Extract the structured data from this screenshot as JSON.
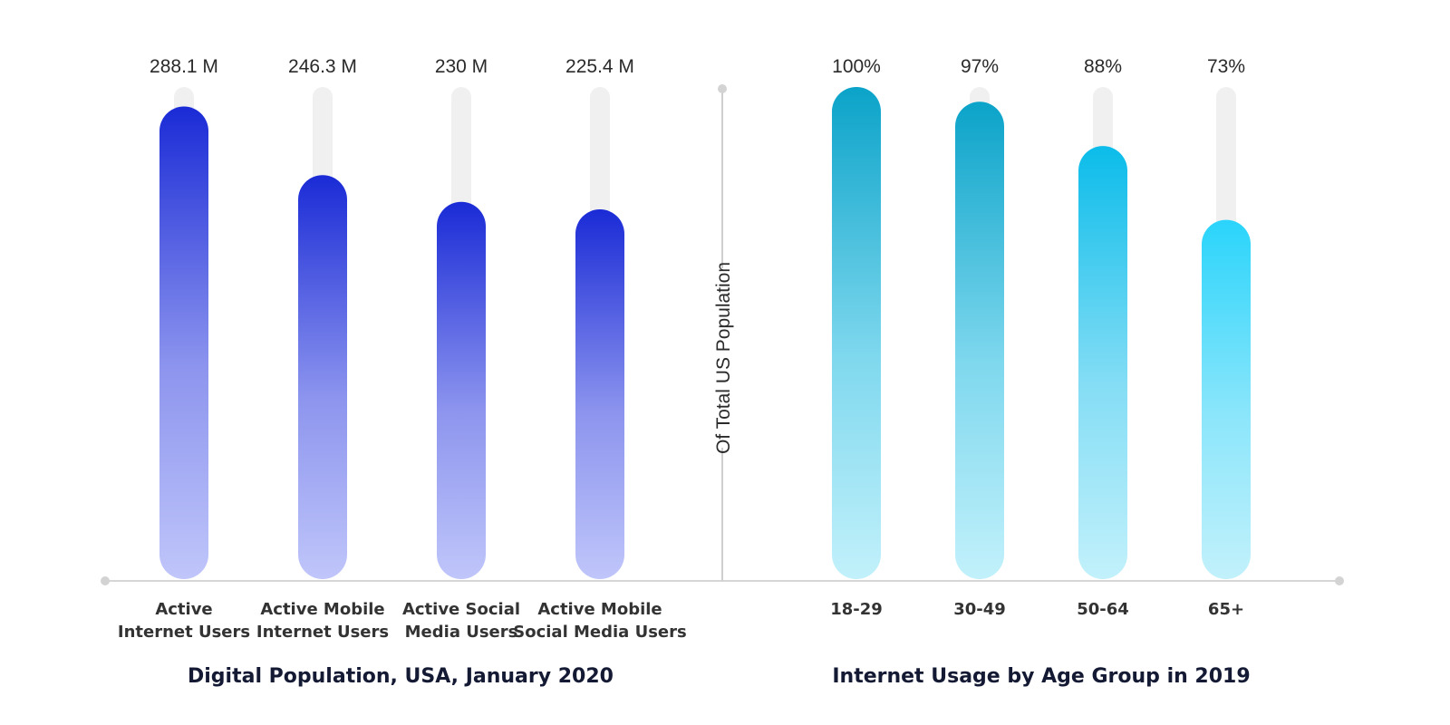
{
  "chart_data": [
    {
      "type": "bar",
      "title": "Digital Population, USA, January 2020",
      "categories": [
        "Active\nInternet Users",
        "Active Mobile\nInternet Users",
        "Active Social\nMedia Users",
        "Active Mobile\nSocial Media Users"
      ],
      "values": [
        288.1,
        246.3,
        230,
        225.4
      ],
      "value_labels": [
        "288.1 M",
        "246.3 M",
        "230 M",
        "225.4 M"
      ],
      "unit": "M",
      "ylim": [
        0,
        300
      ],
      "grid": false,
      "colors": {
        "top": "#1a2bd6",
        "bottom": "#c0c6fa",
        "track": "#f0f0f0"
      }
    },
    {
      "type": "bar",
      "title": "Internet Usage by Age Group in 2019",
      "ylabel": "Of Total US Population",
      "categories": [
        "18-29",
        "30-49",
        "50-64",
        "65+"
      ],
      "values": [
        100,
        97,
        88,
        73
      ],
      "value_labels": [
        "100%",
        "97%",
        "88%",
        "73%"
      ],
      "unit": "%",
      "ylim": [
        0,
        100
      ],
      "grid": false,
      "colors": {
        "top": "#0ba3c9",
        "bottom": "#c2f1fb",
        "track": "#f0f0f0",
        "top_alt": "#2ad4fb"
      }
    }
  ]
}
